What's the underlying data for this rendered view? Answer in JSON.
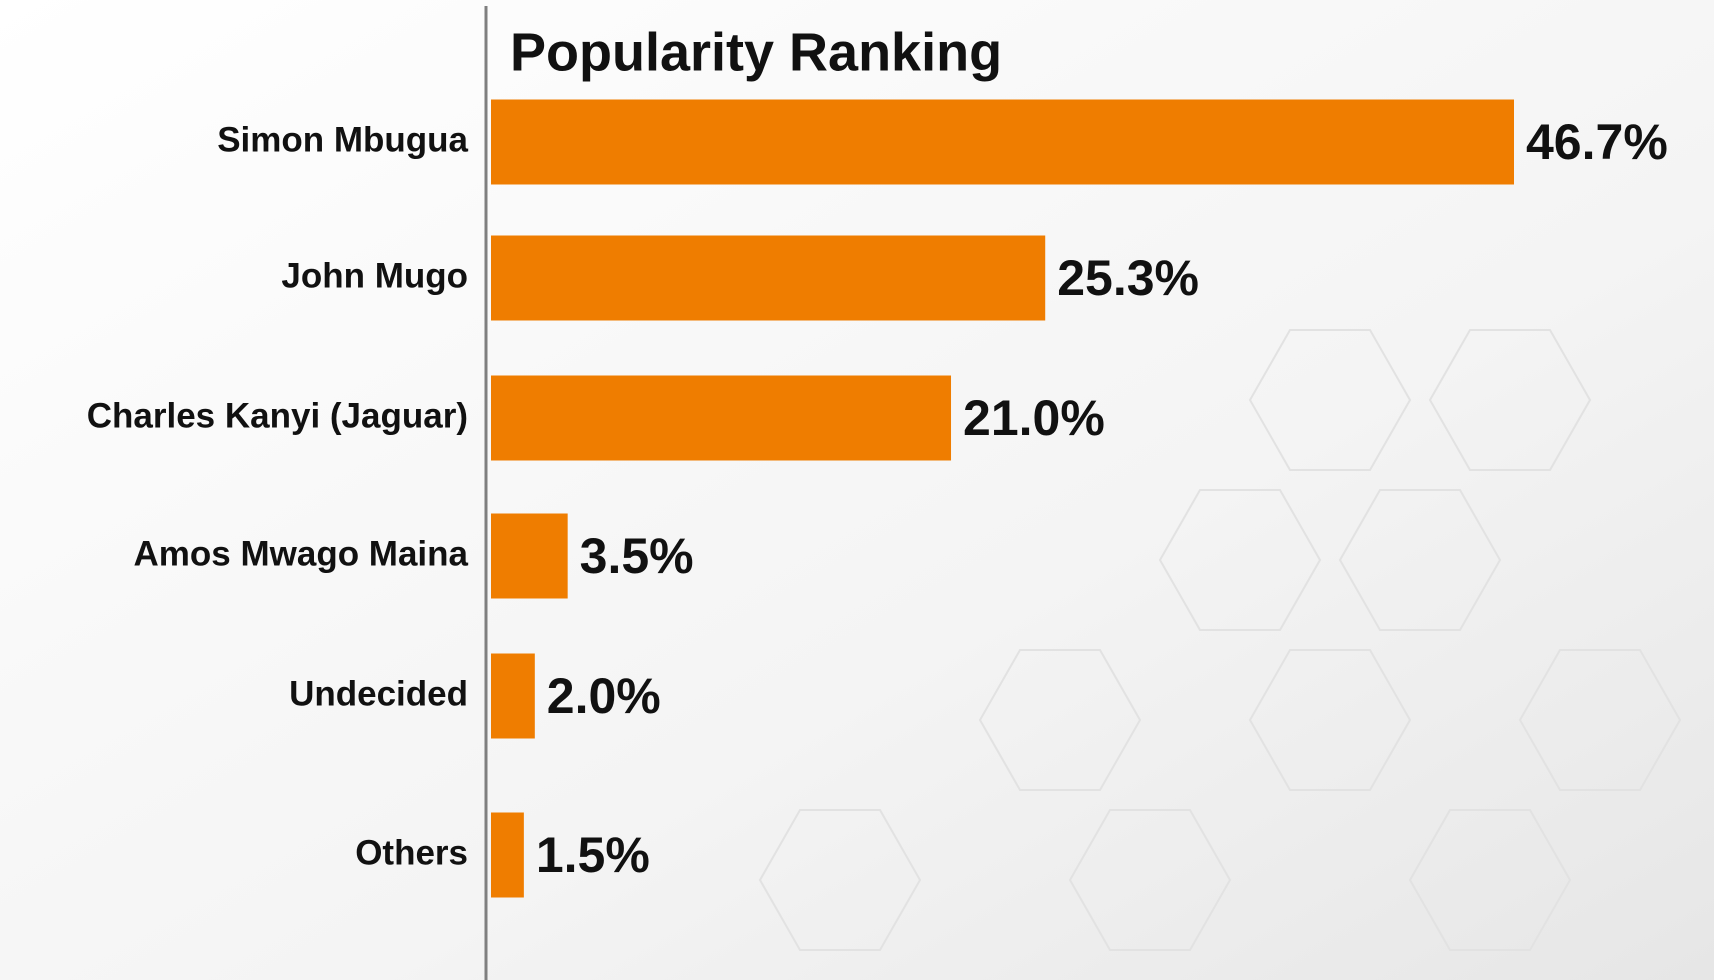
{
  "chart_data": {
    "type": "bar",
    "orientation": "horizontal",
    "title": "Popularity Ranking",
    "categories": [
      "Simon Mbugua",
      "John Mugo",
      "Charles Kanyi (Jaguar)",
      "Amos Mwago Maina",
      "Undecided",
      "Others"
    ],
    "values": [
      46.7,
      25.3,
      21.0,
      3.5,
      2.0,
      1.5
    ],
    "value_labels": [
      "46.7%",
      "25.3%",
      "21.0%",
      "3.5%",
      "2.0%",
      "1.5%"
    ],
    "color": "#ef7d00"
  }
}
